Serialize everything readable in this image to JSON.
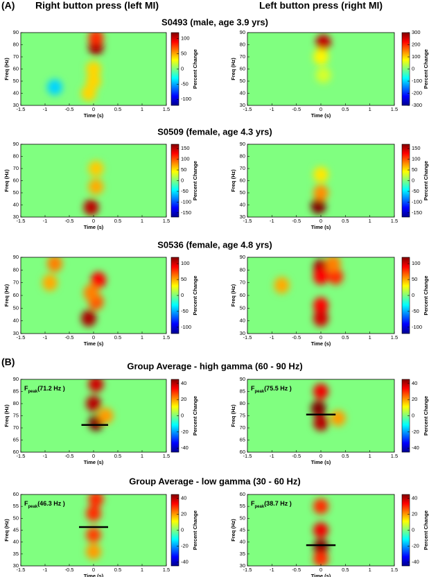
{
  "header": {
    "panel_labels": [
      "(A)",
      "(B)"
    ],
    "column_titles": [
      "Right button press (left MI)",
      "Left button press (right MI)"
    ],
    "row_titles": [
      "S0493 (male, age 3.9 yrs)",
      "S0509 (female, age 4.3 yrs)",
      "S0536 (female, age 4.8 yrs)",
      "Group Average - high gamma (60 - 90 Hz)",
      "Group Average - low gamma (30 - 60 Hz)"
    ]
  },
  "chart_data": [
    {
      "type": "heatmap",
      "xlabel": "Time (s)",
      "ylabel": "Freq (Hz)",
      "colorbar_label": "Percent Change",
      "colormap": "jet",
      "xlim": [
        -1.5,
        1.5
      ],
      "xticks": [
        -1.5,
        -1,
        -0.5,
        0,
        0.5,
        1,
        1.5
      ],
      "ylim": [
        30,
        90
      ],
      "yticks": [
        30,
        40,
        50,
        60,
        70,
        80,
        90
      ],
      "clim": [
        -120,
        120
      ],
      "cticks": [
        -100,
        -50,
        0,
        50,
        100
      ],
      "hotspots": [
        {
          "t": 0.05,
          "f": 78,
          "value": 110
        },
        {
          "t": 0.05,
          "f": 86,
          "value": 80
        },
        {
          "t": 0,
          "f": 60,
          "value": 40
        },
        {
          "t": 0,
          "f": 50,
          "value": 40
        },
        {
          "t": -0.1,
          "f": 40,
          "value": 40
        },
        {
          "t": -0.8,
          "f": 45,
          "value": -40
        }
      ]
    },
    {
      "type": "heatmap",
      "xlabel": "Time (s)",
      "ylabel": "Freq (Hz)",
      "colorbar_label": "Percent Change",
      "colormap": "jet",
      "xlim": [
        -1.5,
        1.5
      ],
      "xticks": [
        -1.5,
        -1,
        -0.5,
        0,
        0.5,
        1,
        1.5
      ],
      "ylim": [
        30,
        90
      ],
      "yticks": [
        30,
        40,
        50,
        60,
        70,
        80,
        90
      ],
      "clim": [
        -300,
        300
      ],
      "cticks": [
        -300,
        -200,
        -100,
        0,
        100,
        200,
        300
      ],
      "hotspots": [
        {
          "t": 0.05,
          "f": 82,
          "value": 260
        },
        {
          "t": 0,
          "f": 70,
          "value": 80
        },
        {
          "t": 0.05,
          "f": 55,
          "value": 50
        }
      ]
    },
    {
      "type": "heatmap",
      "xlabel": "Time (s)",
      "ylabel": "Freq (Hz)",
      "colorbar_label": "Percent Change",
      "colormap": "jet",
      "xlim": [
        -1.5,
        1.5
      ],
      "xticks": [
        -1.5,
        -1,
        -0.5,
        0,
        0.5,
        1,
        1.5
      ],
      "ylim": [
        30,
        90
      ],
      "yticks": [
        30,
        40,
        50,
        60,
        70,
        80,
        90
      ],
      "clim": [
        -170,
        170
      ],
      "cticks": [
        -150,
        -100,
        -50,
        0,
        50,
        100,
        150
      ],
      "hotspots": [
        {
          "t": -0.05,
          "f": 38,
          "value": 150
        },
        {
          "t": 0.05,
          "f": 55,
          "value": 70
        },
        {
          "t": 0.05,
          "f": 70,
          "value": 60
        }
      ]
    },
    {
      "type": "heatmap",
      "xlabel": "Time (s)",
      "ylabel": "Freq (Hz)",
      "colorbar_label": "Percent Change",
      "colormap": "jet",
      "xlim": [
        -1.5,
        1.5
      ],
      "xticks": [
        -1.5,
        -1,
        -0.5,
        0,
        0.5,
        1,
        1.5
      ],
      "ylim": [
        30,
        90
      ],
      "yticks": [
        30,
        40,
        50,
        60,
        70,
        80,
        90
      ],
      "clim": [
        -170,
        170
      ],
      "cticks": [
        -150,
        -100,
        -50,
        0,
        50,
        100,
        150
      ],
      "hotspots": [
        {
          "t": -0.05,
          "f": 39,
          "value": 170
        },
        {
          "t": 0,
          "f": 50,
          "value": 80
        },
        {
          "t": 0,
          "f": 65,
          "value": 50
        }
      ]
    },
    {
      "type": "heatmap",
      "xlabel": "Time (s)",
      "ylabel": "Freq (Hz)",
      "colorbar_label": "Percent Change",
      "colormap": "jet",
      "xlim": [
        -1.5,
        1.5
      ],
      "xticks": [
        -1.5,
        -1,
        -0.5,
        0,
        0.5,
        1,
        1.5
      ],
      "ylim": [
        30,
        90
      ],
      "yticks": [
        30,
        40,
        50,
        60,
        70,
        80,
        90
      ],
      "clim": [
        -120,
        120
      ],
      "cticks": [
        -100,
        -50,
        0,
        50,
        100
      ],
      "hotspots": [
        {
          "t": -0.1,
          "f": 42,
          "value": 110
        },
        {
          "t": 0.05,
          "f": 55,
          "value": 70
        },
        {
          "t": 0.1,
          "f": 72,
          "value": 90
        },
        {
          "t": -0.05,
          "f": 62,
          "value": 60
        },
        {
          "t": -0.8,
          "f": 85,
          "value": 60
        },
        {
          "t": -0.9,
          "f": 70,
          "value": 50
        }
      ]
    },
    {
      "type": "heatmap",
      "xlabel": "Time (s)",
      "ylabel": "Freq (Hz)",
      "colorbar_label": "Percent Change",
      "colormap": "jet",
      "xlim": [
        -1.5,
        1.5
      ],
      "xticks": [
        -1.5,
        -1,
        -0.5,
        0,
        0.5,
        1,
        1.5
      ],
      "ylim": [
        30,
        90
      ],
      "yticks": [
        30,
        40,
        50,
        60,
        70,
        80,
        90
      ],
      "clim": [
        -120,
        120
      ],
      "cticks": [
        -100,
        -50,
        0,
        50,
        100
      ],
      "hotspots": [
        {
          "t": 0,
          "f": 82,
          "value": 110
        },
        {
          "t": 0,
          "f": 75,
          "value": 90
        },
        {
          "t": 0,
          "f": 52,
          "value": 90
        },
        {
          "t": 0,
          "f": 42,
          "value": 100
        },
        {
          "t": 0.3,
          "f": 75,
          "value": 80
        },
        {
          "t": 0.25,
          "f": 85,
          "value": 60
        },
        {
          "t": -0.8,
          "f": 68,
          "value": 50
        }
      ]
    },
    {
      "type": "heatmap",
      "xlabel": "Time (s)",
      "ylabel": "Freq (Hz)",
      "colorbar_label": "Percent Change",
      "colormap": "jet",
      "xlim": [
        -1.5,
        1.5
      ],
      "xticks": [
        -1.5,
        -1,
        -0.5,
        0,
        0.5,
        1,
        1.5
      ],
      "ylim": [
        60,
        90
      ],
      "yticks": [
        60,
        65,
        70,
        75,
        80,
        85,
        90
      ],
      "clim": [
        -45,
        45
      ],
      "cticks": [
        -40,
        -20,
        0,
        20,
        40
      ],
      "hotspots": [
        {
          "t": 0.05,
          "f": 72,
          "value": 45
        },
        {
          "t": 0,
          "f": 80,
          "value": 40
        },
        {
          "t": 0.05,
          "f": 88,
          "value": 38
        },
        {
          "t": 0.25,
          "f": 75,
          "value": 20
        }
      ],
      "annotation": {
        "symbol": "F",
        "subscript": "peak",
        "label": "(71.2 Hz )",
        "freq": 71.2,
        "t_range": [
          -0.25,
          0.3
        ]
      }
    },
    {
      "type": "heatmap",
      "xlabel": "Time (s)",
      "ylabel": "Freq (Hz)",
      "colorbar_label": "Percent Change",
      "colormap": "jet",
      "xlim": [
        -1.5,
        1.5
      ],
      "xticks": [
        -1.5,
        -1,
        -0.5,
        0,
        0.5,
        1,
        1.5
      ],
      "ylim": [
        60,
        90
      ],
      "yticks": [
        60,
        65,
        70,
        75,
        80,
        85,
        90
      ],
      "clim": [
        -45,
        45
      ],
      "cticks": [
        -40,
        -20,
        0,
        20,
        40
      ],
      "hotspots": [
        {
          "t": -0.05,
          "f": 78,
          "value": 45
        },
        {
          "t": 0,
          "f": 72,
          "value": 40
        },
        {
          "t": 0,
          "f": 85,
          "value": 35
        },
        {
          "t": 0.35,
          "f": 74,
          "value": 20
        }
      ],
      "annotation": {
        "symbol": "F",
        "subscript": "peak",
        "label": "(75.5 Hz )",
        "freq": 75.5,
        "t_range": [
          -0.3,
          0.3
        ]
      }
    },
    {
      "type": "heatmap",
      "xlabel": "Time (s)",
      "ylabel": "Freq (Hz)",
      "colorbar_label": "Percent Change",
      "colormap": "jet",
      "xlim": [
        -1.5,
        1.5
      ],
      "xticks": [
        -1.5,
        -1,
        -0.5,
        0,
        0.5,
        1,
        1.5
      ],
      "ylim": [
        30,
        60
      ],
      "yticks": [
        30,
        35,
        40,
        45,
        50,
        55,
        60
      ],
      "clim": [
        -45,
        45
      ],
      "cticks": [
        -40,
        -20,
        0,
        20,
        40
      ],
      "hotspots": [
        {
          "t": 0,
          "f": 52,
          "value": 30
        },
        {
          "t": 0,
          "f": 43,
          "value": 28
        },
        {
          "t": 0.05,
          "f": 58,
          "value": 30
        },
        {
          "t": 0,
          "f": 36,
          "value": 20
        }
      ],
      "annotation": {
        "symbol": "F",
        "subscript": "peak",
        "label": "(46.3 Hz )",
        "freq": 46.3,
        "t_range": [
          -0.3,
          0.3
        ]
      }
    },
    {
      "type": "heatmap",
      "xlabel": "Time (s)",
      "ylabel": "Freq (Hz)",
      "colorbar_label": "Percent Change",
      "colormap": "jet",
      "xlim": [
        -1.5,
        1.5
      ],
      "xticks": [
        -1.5,
        -1,
        -0.5,
        0,
        0.5,
        1,
        1.5
      ],
      "ylim": [
        30,
        60
      ],
      "yticks": [
        30,
        35,
        40,
        45,
        50,
        55,
        60
      ],
      "clim": [
        -45,
        45
      ],
      "cticks": [
        -40,
        -20,
        0,
        20,
        40
      ],
      "hotspots": [
        {
          "t": 0,
          "f": 38,
          "value": 45
        },
        {
          "t": 0,
          "f": 45,
          "value": 35
        },
        {
          "t": 0,
          "f": 55,
          "value": 30
        },
        {
          "t": 0,
          "f": 33,
          "value": 30
        }
      ],
      "annotation": {
        "symbol": "F",
        "subscript": "peak",
        "label": "(38.7 Hz )",
        "freq": 38.7,
        "t_range": [
          -0.3,
          0.3
        ]
      }
    }
  ]
}
